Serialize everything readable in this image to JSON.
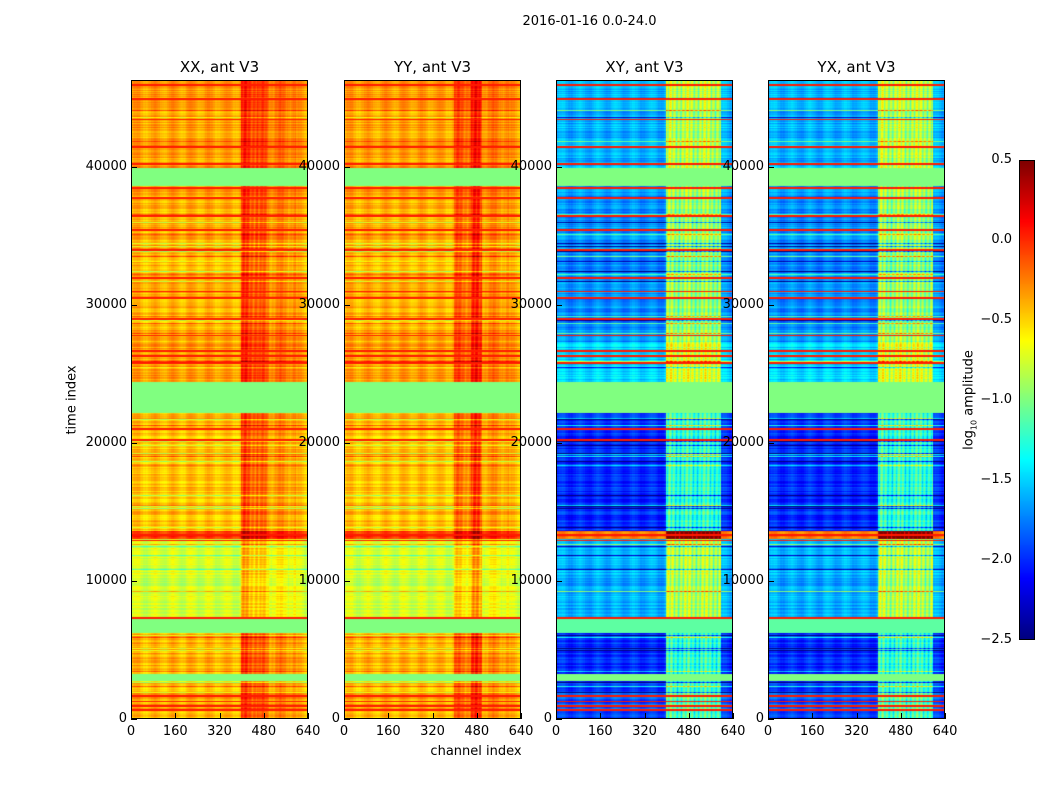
{
  "chart_data": {
    "type": "heatmap",
    "title": "2016-01-16 0.0-24.0",
    "xlabel": "channel index",
    "ylabel": "time index",
    "xlim": [
      0,
      640
    ],
    "ylim": [
      0,
      46300
    ],
    "xticks": [
      "0",
      "160",
      "320",
      "480",
      "640"
    ],
    "yticks": [
      "0",
      "10000",
      "20000",
      "30000",
      "40000"
    ],
    "colorbar": {
      "label_prefix": "log",
      "label_sub": "10",
      "label_suffix": " amplitude",
      "range": [
        -2.5,
        0.5
      ],
      "ticks": [
        "0.5",
        "0.0",
        "−0.5",
        "−1.0",
        "−1.5",
        "−2.0",
        "−2.5"
      ],
      "colormap": "jet"
    },
    "time_bands": [
      {
        "start": 0,
        "end": 1800,
        "parallel": -0.4,
        "cross": -1.9
      },
      {
        "start": 1800,
        "end": 2700,
        "parallel": -0.45,
        "cross": -1.95
      },
      {
        "start": 2700,
        "end": 3200,
        "parallel": -1.0,
        "cross": -1.0
      },
      {
        "start": 3200,
        "end": 6200,
        "parallel": -0.4,
        "cross": -2.0
      },
      {
        "start": 6200,
        "end": 7200,
        "parallel": -1.0,
        "cross": -1.1
      },
      {
        "start": 7200,
        "end": 13000,
        "parallel": -0.75,
        "cross": -1.6
      },
      {
        "start": 13000,
        "end": 13600,
        "parallel": -0.1,
        "cross": -0.3
      },
      {
        "start": 13600,
        "end": 22200,
        "parallel": -0.45,
        "cross": -2.0
      },
      {
        "start": 22200,
        "end": 24400,
        "parallel": -1.0,
        "cross": -1.0
      },
      {
        "start": 24400,
        "end": 27300,
        "parallel": -0.35,
        "cross": -1.5
      },
      {
        "start": 27300,
        "end": 38700,
        "parallel": -0.4,
        "cross": -1.7
      },
      {
        "start": 38700,
        "end": 40000,
        "parallel": -1.0,
        "cross": -1.0
      },
      {
        "start": 40000,
        "end": 46300,
        "parallel": -0.35,
        "cross": -1.6
      }
    ],
    "red_line_times": [
      600,
      900,
      1200,
      1600,
      7300,
      12900,
      13300,
      20200,
      21000,
      25800,
      26300,
      26700,
      27800,
      29000,
      30500,
      31000,
      32000,
      34000,
      35500,
      36500,
      37800,
      38500,
      40300,
      41500,
      43500,
      45000,
      46000
    ],
    "panels": [
      {
        "title": "XX, ant V3",
        "kind": "parallel",
        "channel_offsets": [
          {
            "start": 400,
            "end": 460,
            "delta": 0.3
          },
          {
            "start": 460,
            "end": 500,
            "delta": 0.2
          },
          {
            "start": 500,
            "end": 600,
            "delta": 0.12
          }
        ]
      },
      {
        "title": "YY, ant V3",
        "kind": "parallel",
        "channel_offsets": [
          {
            "start": 400,
            "end": 460,
            "delta": 0.2
          },
          {
            "start": 460,
            "end": 500,
            "delta": 0.35
          },
          {
            "start": 500,
            "end": 600,
            "delta": 0.1
          }
        ]
      },
      {
        "title": "XY, ant V3",
        "kind": "cross",
        "channel_offsets": [
          {
            "start": 400,
            "end": 600,
            "delta": 0.7
          }
        ]
      },
      {
        "title": "YX, ant V3",
        "kind": "cross",
        "channel_offsets": [
          {
            "start": 400,
            "end": 600,
            "delta": 0.7
          }
        ]
      }
    ]
  }
}
